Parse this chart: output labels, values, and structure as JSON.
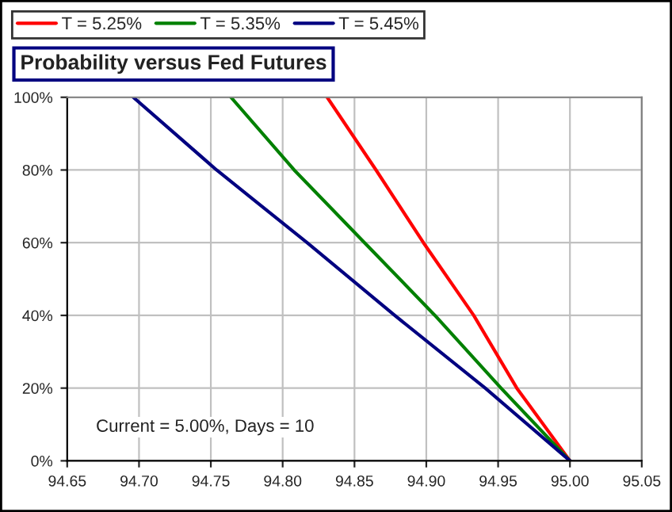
{
  "chart_data": {
    "type": "line",
    "title": "Probability versus Fed Futures",
    "annotations": [
      "Current = 5.00%, Days = 10"
    ],
    "series": [
      {
        "name": "T = 5.25%",
        "color": "#ff0000",
        "x": [
          94.831,
          94.865,
          94.898,
          94.933,
          94.963,
          95.0
        ],
        "values": [
          100,
          80,
          60,
          40,
          20,
          0
        ]
      },
      {
        "name": "T = 5.35%",
        "color": "#008000",
        "x": [
          94.764,
          94.808,
          94.857,
          94.906,
          94.952,
          95.0
        ],
        "values": [
          100,
          80,
          60,
          40,
          20,
          0
        ]
      },
      {
        "name": "T = 5.45%",
        "color": "#000080",
        "x": [
          94.696,
          94.754,
          94.817,
          94.878,
          94.941,
          95.0
        ],
        "values": [
          100,
          80,
          60,
          40,
          20,
          0
        ]
      }
    ],
    "xlim": [
      94.65,
      95.05
    ],
    "xticks": [
      {
        "value": 94.65,
        "label": "94.65"
      },
      {
        "value": 94.7,
        "label": "94.70"
      },
      {
        "value": 94.75,
        "label": "94.75"
      },
      {
        "value": 94.8,
        "label": "94.80"
      },
      {
        "value": 94.85,
        "label": "94.85"
      },
      {
        "value": 94.9,
        "label": "94.90"
      },
      {
        "value": 94.95,
        "label": "94.95"
      },
      {
        "value": 95.0,
        "label": "95.00"
      },
      {
        "value": 95.05,
        "label": "95.05"
      }
    ],
    "ylim": [
      0,
      100
    ],
    "yticks": [
      {
        "value": 0,
        "label": "0%"
      },
      {
        "value": 20,
        "label": "20%"
      },
      {
        "value": 40,
        "label": "40%"
      },
      {
        "value": 60,
        "label": "60%"
      },
      {
        "value": 80,
        "label": "80%"
      },
      {
        "value": 100,
        "label": "100%"
      }
    ],
    "grid": true,
    "legend": "top left",
    "marker": "none",
    "line_style": "solid"
  }
}
